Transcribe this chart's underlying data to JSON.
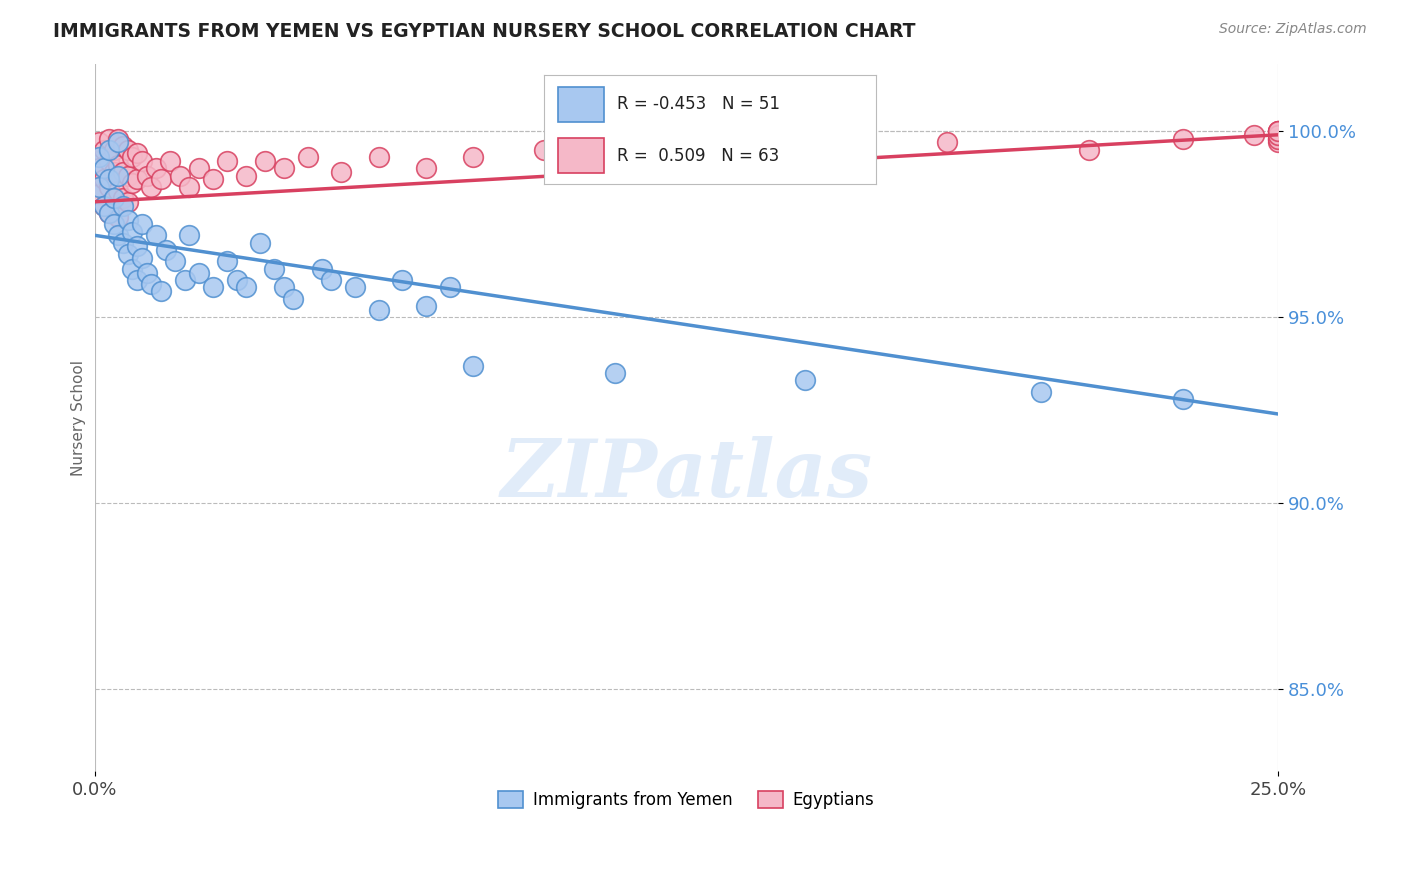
{
  "title": "IMMIGRANTS FROM YEMEN VS EGYPTIAN NURSERY SCHOOL CORRELATION CHART",
  "source": "Source: ZipAtlas.com",
  "ylabel": "Nursery School",
  "ytick_values": [
    0.85,
    0.9,
    0.95,
    1.0
  ],
  "xlim": [
    0.0,
    0.25
  ],
  "ylim": [
    0.828,
    1.018
  ],
  "legend_r_blue": "-0.453",
  "legend_n_blue": "51",
  "legend_r_pink": "0.509",
  "legend_n_pink": "63",
  "legend_label_blue": "Immigrants from Yemen",
  "legend_label_pink": "Egyptians",
  "blue_color": "#a8c8f0",
  "pink_color": "#f5b8c8",
  "blue_line_color": "#5090d0",
  "pink_line_color": "#d84060",
  "watermark": "ZIPatlas",
  "blue_scatter_x": [
    0.001,
    0.001,
    0.002,
    0.002,
    0.003,
    0.003,
    0.003,
    0.004,
    0.004,
    0.005,
    0.005,
    0.005,
    0.006,
    0.006,
    0.007,
    0.007,
    0.008,
    0.008,
    0.009,
    0.009,
    0.01,
    0.01,
    0.011,
    0.012,
    0.013,
    0.014,
    0.015,
    0.017,
    0.019,
    0.022,
    0.025,
    0.03,
    0.035,
    0.04,
    0.048,
    0.055,
    0.065,
    0.075,
    0.02,
    0.028,
    0.032,
    0.038,
    0.042,
    0.05,
    0.06,
    0.07,
    0.08,
    0.11,
    0.15,
    0.2,
    0.23
  ],
  "blue_scatter_y": [
    0.993,
    0.985,
    0.99,
    0.98,
    0.987,
    0.978,
    0.995,
    0.982,
    0.975,
    0.988,
    0.972,
    0.997,
    0.98,
    0.97,
    0.976,
    0.967,
    0.973,
    0.963,
    0.969,
    0.96,
    0.966,
    0.975,
    0.962,
    0.959,
    0.972,
    0.957,
    0.968,
    0.965,
    0.96,
    0.962,
    0.958,
    0.96,
    0.97,
    0.958,
    0.963,
    0.958,
    0.96,
    0.958,
    0.972,
    0.965,
    0.958,
    0.963,
    0.955,
    0.96,
    0.952,
    0.953,
    0.937,
    0.935,
    0.933,
    0.93,
    0.928
  ],
  "pink_scatter_x": [
    0.001,
    0.001,
    0.001,
    0.002,
    0.002,
    0.002,
    0.003,
    0.003,
    0.003,
    0.003,
    0.004,
    0.004,
    0.004,
    0.005,
    0.005,
    0.005,
    0.005,
    0.006,
    0.006,
    0.006,
    0.007,
    0.007,
    0.007,
    0.008,
    0.008,
    0.009,
    0.009,
    0.01,
    0.011,
    0.012,
    0.013,
    0.014,
    0.016,
    0.018,
    0.02,
    0.022,
    0.025,
    0.028,
    0.032,
    0.036,
    0.04,
    0.045,
    0.052,
    0.06,
    0.07,
    0.08,
    0.095,
    0.11,
    0.13,
    0.155,
    0.18,
    0.21,
    0.23,
    0.245,
    0.25,
    0.25,
    0.25,
    0.25,
    0.25,
    0.25,
    0.25,
    0.25,
    0.25
  ],
  "pink_scatter_y": [
    0.997,
    0.99,
    0.983,
    0.995,
    0.987,
    0.98,
    0.998,
    0.992,
    0.985,
    0.978,
    0.995,
    0.989,
    0.982,
    0.998,
    0.991,
    0.984,
    0.977,
    0.996,
    0.989,
    0.982,
    0.995,
    0.988,
    0.981,
    0.993,
    0.986,
    0.994,
    0.987,
    0.992,
    0.988,
    0.985,
    0.99,
    0.987,
    0.992,
    0.988,
    0.985,
    0.99,
    0.987,
    0.992,
    0.988,
    0.992,
    0.99,
    0.993,
    0.989,
    0.993,
    0.99,
    0.993,
    0.995,
    0.992,
    0.997,
    0.993,
    0.997,
    0.995,
    0.998,
    0.999,
    0.998,
    0.997,
    0.999,
    1.0,
    0.999,
    1.0,
    0.998,
    0.999,
    1.0
  ],
  "blue_trend_x": [
    0.0,
    0.25
  ],
  "blue_trend_y": [
    0.972,
    0.924
  ],
  "pink_trend_x": [
    0.0,
    0.25
  ],
  "pink_trend_y": [
    0.981,
    0.999
  ]
}
